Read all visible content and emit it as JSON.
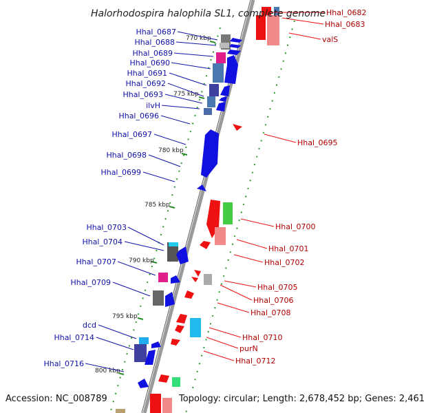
{
  "title": "Halorhodospira halophila SL1, complete genome",
  "footer": {
    "accession": "Accession: NC_008789",
    "topology": "Topology: circular; Length: 2,678,452 bp; Genes: 2,461"
  },
  "colors": {
    "reverse_strand_label": "#1010a8",
    "forward_strand_label": "#b00000",
    "backbone": "#9a9a9a"
  },
  "kbp_markers": [
    "770 kbp",
    "775 kbp",
    "780 kbp",
    "785 kbp",
    "790 kbp",
    "795 kbp",
    "800 kbp"
  ],
  "left_labels": [
    "Hhal_0687",
    "Hhal_0688",
    "Hhal_0689",
    "Hhal_0690",
    "Hhal_0691",
    "Hhal_0692",
    "Hhal_0693",
    "ilvH",
    "Hhal_0696",
    "Hhal_0697",
    "Hhal_0698",
    "Hhal_0699",
    "Hhal_0703",
    "Hhal_0704",
    "Hhal_0707",
    "Hhal_0709",
    "dcd",
    "Hhal_0714",
    "Hhal_0716"
  ],
  "right_labels": [
    "Hhal_0682",
    "Hhal_0683",
    "valS",
    "Hhal_0695",
    "Hhal_0700",
    "Hhal_0701",
    "Hhal_0702",
    "Hhal_0705",
    "Hhal_0706",
    "Hhal_0708",
    "Hhal_0710",
    "purN",
    "Hhal_0712"
  ]
}
